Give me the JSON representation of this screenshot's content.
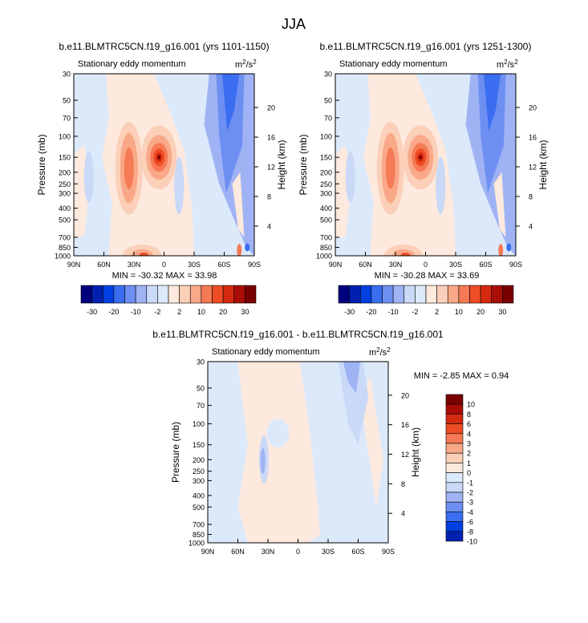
{
  "page": {
    "title": "JJA"
  },
  "colors": {
    "levels": [
      "#00007f",
      "#0020b0",
      "#0040e0",
      "#3a6df0",
      "#6d8ff2",
      "#9fb3f4",
      "#c9d9f7",
      "#dce9fa",
      "#fde9dd",
      "#fbcfb8",
      "#f9a888",
      "#f57a55",
      "#ee4d25",
      "#d62a10",
      "#a80e06",
      "#7a0000"
    ],
    "bg_blue": "#dce9fa",
    "bg_peach": "#fde9dd"
  },
  "chart_data": [
    {
      "type": "heatmap",
      "title": "b.e11.BLMTRC5CN.f19_g16.001 (yrs 1101-1150)",
      "subtitle_left": "Stationary eddy momentum",
      "units_base": "m",
      "units_exp1": "2",
      "units_mid": "/s",
      "units_exp2": "2",
      "xlabel": "",
      "ylabel": "Pressure (mb)",
      "ylabel_right": "Height (km)",
      "x_ticks": [
        "90N",
        "60N",
        "30N",
        "0",
        "30S",
        "60S",
        "90S"
      ],
      "y_ticks": [
        "30",
        "50",
        "70",
        "100",
        "150",
        "200",
        "250",
        "300",
        "400",
        "500",
        "700",
        "850",
        "1000"
      ],
      "y_ticks_right": [
        "20",
        "16",
        "12",
        "8",
        "4"
      ],
      "stats": "MIN = -30.32  MAX = 33.98",
      "colorbar_labels": [
        "-30",
        "-20",
        "-10",
        "-2",
        "2",
        "10",
        "20",
        "30"
      ],
      "features": [
        {
          "lat": 5,
          "p": 150,
          "value": 34,
          "sign": "positive"
        },
        {
          "lat": 35,
          "p": 180,
          "value": 18,
          "sign": "positive"
        },
        {
          "lat": 20,
          "p": 1000,
          "value": 15,
          "sign": "positive"
        },
        {
          "lat": -60,
          "p": 30,
          "value": -30,
          "sign": "negative"
        },
        {
          "lat": 65,
          "p": 220,
          "value": -4,
          "sign": "negative"
        }
      ]
    },
    {
      "type": "heatmap",
      "title": "b.e11.BLMTRC5CN.f19_g16.001 (yrs 1251-1300)",
      "subtitle_left": "Stationary eddy momentum",
      "units_base": "m",
      "units_exp1": "2",
      "units_mid": "/s",
      "units_exp2": "2",
      "xlabel": "",
      "ylabel": "Pressure (mb)",
      "ylabel_right": "Height (km)",
      "x_ticks": [
        "90N",
        "60N",
        "30N",
        "0",
        "30S",
        "60S",
        "90S"
      ],
      "y_ticks": [
        "30",
        "50",
        "70",
        "100",
        "150",
        "200",
        "250",
        "300",
        "400",
        "500",
        "700",
        "850",
        "1000"
      ],
      "y_ticks_right": [
        "20",
        "16",
        "12",
        "8",
        "4"
      ],
      "stats": "MIN = -30.28  MAX = 33.69",
      "colorbar_labels": [
        "-30",
        "-20",
        "-10",
        "-2",
        "2",
        "10",
        "20",
        "30"
      ],
      "features": [
        {
          "lat": 5,
          "p": 150,
          "value": 33.7,
          "sign": "positive"
        },
        {
          "lat": 35,
          "p": 180,
          "value": 18,
          "sign": "positive"
        },
        {
          "lat": 20,
          "p": 1000,
          "value": 15,
          "sign": "positive"
        },
        {
          "lat": -60,
          "p": 30,
          "value": -30,
          "sign": "negative"
        },
        {
          "lat": 65,
          "p": 220,
          "value": -4,
          "sign": "negative"
        }
      ]
    },
    {
      "type": "heatmap",
      "title": "b.e11.BLMTRC5CN.f19_g16.001 - b.e11.BLMTRC5CN.f19_g16.001",
      "subtitle_left": "Stationary eddy momentum",
      "units_base": "m",
      "units_exp1": "2",
      "units_mid": "/s",
      "units_exp2": "2",
      "xlabel": "",
      "ylabel": "Pressure (mb)",
      "ylabel_right": "Height (km)",
      "x_ticks": [
        "90N",
        "60N",
        "30N",
        "0",
        "30S",
        "60S",
        "90S"
      ],
      "y_ticks": [
        "30",
        "50",
        "70",
        "100",
        "150",
        "200",
        "250",
        "300",
        "400",
        "500",
        "700",
        "850",
        "1000"
      ],
      "y_ticks_right": [
        "20",
        "16",
        "12",
        "8",
        "4"
      ],
      "stats": "MIN = -2.85  MAX =  0.94",
      "colorbar_labels": [
        "10",
        "8",
        "6",
        "4",
        "3",
        "2",
        "1",
        "0",
        "-1",
        "-2",
        "-3",
        "-4",
        "-6",
        "-8",
        "-10"
      ],
      "features": [
        {
          "lat": 35,
          "p": 200,
          "value": -2.85,
          "sign": "negative"
        },
        {
          "lat": -55,
          "p": 35,
          "value": -2,
          "sign": "negative"
        },
        {
          "lat": 0,
          "p": 150,
          "value": 0.5,
          "sign": "positive"
        }
      ]
    }
  ]
}
